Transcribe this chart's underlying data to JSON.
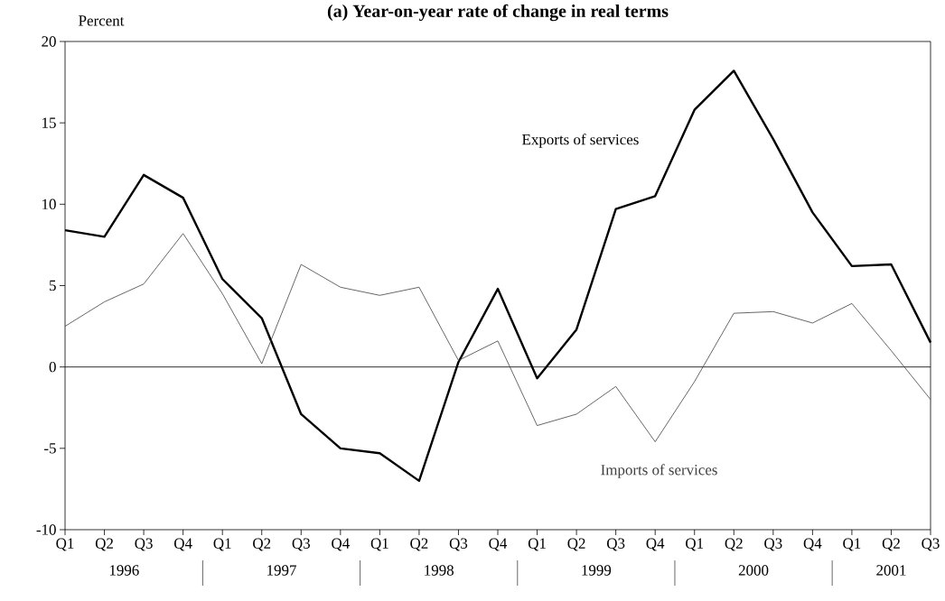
{
  "chart_data": {
    "type": "line",
    "title": "(a) Year-on-year rate of change in real terms",
    "ylabel": "Percent",
    "categories": [
      "Q1",
      "Q2",
      "Q3",
      "Q4",
      "Q1",
      "Q2",
      "Q3",
      "Q4",
      "Q1",
      "Q2",
      "Q3",
      "Q4",
      "Q1",
      "Q2",
      "Q3",
      "Q4",
      "Q1",
      "Q2",
      "Q3",
      "Q4",
      "Q1",
      "Q2",
      "Q3"
    ],
    "annotations": [
      "1996",
      "1997",
      "1998",
      "1999",
      "2000",
      "2001"
    ],
    "series": [
      {
        "name": "Exports of services",
        "color": "#000000",
        "values": [
          8.4,
          8.0,
          11.8,
          10.4,
          5.4,
          3.0,
          -2.9,
          -5.0,
          -5.3,
          -7.0,
          0.3,
          4.8,
          -0.7,
          2.3,
          9.7,
          10.5,
          15.8,
          18.2,
          14.0,
          9.5,
          6.2,
          6.3,
          1.5
        ]
      },
      {
        "name": "Imports of services",
        "color": "#404040",
        "values": [
          2.5,
          4.0,
          5.1,
          8.2,
          4.5,
          0.2,
          6.3,
          4.9,
          4.4,
          4.9,
          0.4,
          1.6,
          -3.6,
          -2.9,
          -1.2,
          -4.6,
          -0.9,
          3.3,
          3.4,
          2.7,
          3.9,
          1.0,
          -2.0
        ]
      }
    ],
    "ylim": [
      -10,
      20
    ],
    "yticks": [
      -10,
      -5,
      0,
      5,
      10,
      15,
      20
    ],
    "ref_lines": [
      {
        "axis": "y",
        "value": 0
      }
    ],
    "legend": false,
    "grid": false
  }
}
